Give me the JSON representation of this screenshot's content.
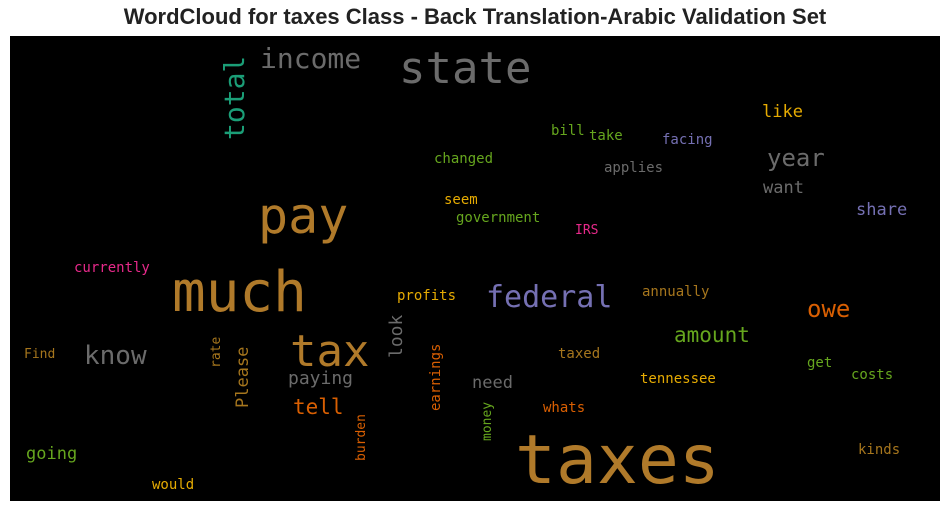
{
  "chart_data": {
    "type": "wordcloud",
    "title": "WordCloud for taxes Class - Back Translation-Arabic Validation Set",
    "background": "#000000",
    "words": [
      {
        "text": "taxes",
        "color": "#b07a2a"
      },
      {
        "text": "much",
        "color": "#b07a2a"
      },
      {
        "text": "state",
        "color": "#6b6b6b"
      },
      {
        "text": "pay",
        "color": "#b07a2a"
      },
      {
        "text": "tax",
        "color": "#b07a2a"
      },
      {
        "text": "federal",
        "color": "#7570b3"
      },
      {
        "text": "income",
        "color": "#6b6b6b"
      },
      {
        "text": "total",
        "color": "#1b9e77"
      },
      {
        "text": "know",
        "color": "#6b6b6b"
      },
      {
        "text": "year",
        "color": "#6b6b6b"
      },
      {
        "text": "owe",
        "color": "#d95f02"
      },
      {
        "text": "amount",
        "color": "#66a61e"
      },
      {
        "text": "tell",
        "color": "#d95f02"
      },
      {
        "text": "paying",
        "color": "#6b6b6b"
      },
      {
        "text": "look",
        "color": "#6b6b6b"
      },
      {
        "text": "Please",
        "color": "#a6761d"
      },
      {
        "text": "need",
        "color": "#6b6b6b"
      },
      {
        "text": "want",
        "color": "#6b6b6b"
      },
      {
        "text": "like",
        "color": "#e6ab02"
      },
      {
        "text": "share",
        "color": "#7570b3"
      },
      {
        "text": "going",
        "color": "#66a61e"
      },
      {
        "text": "tennessee",
        "color": "#e6ab02"
      },
      {
        "text": "costs",
        "color": "#66a61e"
      },
      {
        "text": "get",
        "color": "#66a61e"
      },
      {
        "text": "kinds",
        "color": "#a6761d"
      },
      {
        "text": "would",
        "color": "#e6ab02"
      },
      {
        "text": "whats",
        "color": "#d95f02"
      },
      {
        "text": "taxed",
        "color": "#a6761d"
      },
      {
        "text": "money",
        "color": "#66a61e"
      },
      {
        "text": "earnings",
        "color": "#d95f02"
      },
      {
        "text": "burden",
        "color": "#d95f02"
      },
      {
        "text": "rate",
        "color": "#a6761d"
      },
      {
        "text": "Find",
        "color": "#a6761d"
      },
      {
        "text": "currently",
        "color": "#e7298a"
      },
      {
        "text": "profits",
        "color": "#e6ab02"
      },
      {
        "text": "annually",
        "color": "#a6761d"
      },
      {
        "text": "IRS",
        "color": "#e7298a"
      },
      {
        "text": "government",
        "color": "#66a61e"
      },
      {
        "text": "seem",
        "color": "#e6ab02"
      },
      {
        "text": "changed",
        "color": "#66a61e"
      },
      {
        "text": "bill",
        "color": "#66a61e"
      },
      {
        "text": "take",
        "color": "#66a61e"
      },
      {
        "text": "facing",
        "color": "#7570b3"
      },
      {
        "text": "applies",
        "color": "#6b6b6b"
      }
    ]
  }
}
